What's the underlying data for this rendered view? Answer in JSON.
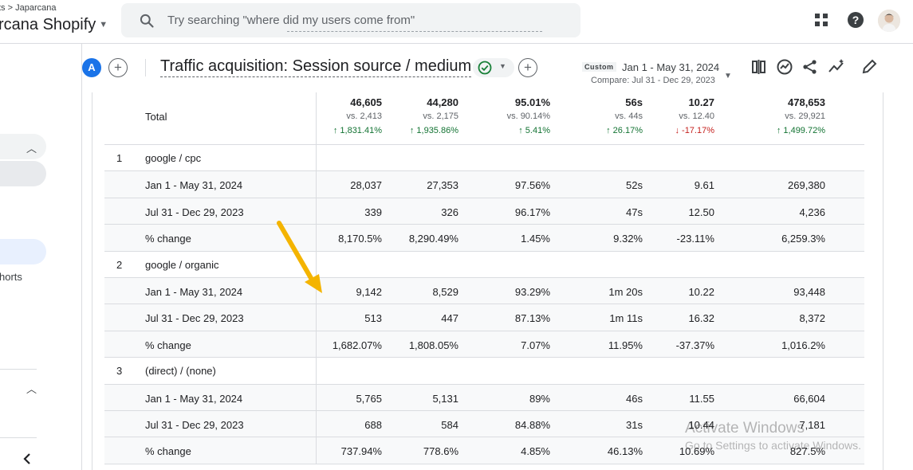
{
  "breadcrumb": "ts > Japarcana",
  "property": "rcana Shopify",
  "search_placeholder": "Try searching \"where did my users come from\"",
  "sidebar": {
    "partial_text": "horts"
  },
  "report": {
    "avatar_letter": "A",
    "title": "Traffic acquisition: Session source / medium",
    "custom_chip": "Custom",
    "date_range": "Jan 1 - May 31, 2024",
    "compare_range": "Compare: Jul 31 - Dec 29, 2023"
  },
  "totals": {
    "label": "Total",
    "cols": [
      {
        "value": "46,605",
        "vs": "vs. 2,413",
        "change": "↑ 1,831.41%",
        "dir": "up"
      },
      {
        "value": "44,280",
        "vs": "vs. 2,175",
        "change": "↑ 1,935.86%",
        "dir": "up"
      },
      {
        "value": "95.01%",
        "vs": "vs. 90.14%",
        "change": "↑ 5.41%",
        "dir": "up"
      },
      {
        "value": "56s",
        "vs": "vs. 44s",
        "change": "↑ 26.17%",
        "dir": "up"
      },
      {
        "value": "10.27",
        "vs": "vs. 12.40",
        "change": "↓ -17.17%",
        "dir": "down"
      },
      {
        "value": "478,653",
        "vs": "vs. 29,921",
        "change": "↑ 1,499.72%",
        "dir": "up"
      }
    ]
  },
  "groups": [
    {
      "index": "1",
      "name": "google / cpc",
      "rows": [
        {
          "label": "Jan 1 - May 31, 2024",
          "values": [
            "28,037",
            "27,353",
            "97.56%",
            "52s",
            "9.61",
            "269,380"
          ]
        },
        {
          "label": "Jul 31 - Dec 29, 2023",
          "values": [
            "339",
            "326",
            "96.17%",
            "47s",
            "12.50",
            "4,236"
          ]
        },
        {
          "label": "% change",
          "values": [
            "8,170.5%",
            "8,290.49%",
            "1.45%",
            "9.32%",
            "-23.11%",
            "6,259.3%"
          ]
        }
      ]
    },
    {
      "index": "2",
      "name": "google / organic",
      "rows": [
        {
          "label": "Jan 1 - May 31, 2024",
          "values": [
            "9,142",
            "8,529",
            "93.29%",
            "1m 20s",
            "10.22",
            "93,448"
          ]
        },
        {
          "label": "Jul 31 - Dec 29, 2023",
          "values": [
            "513",
            "447",
            "87.13%",
            "1m 11s",
            "16.32",
            "8,372"
          ]
        },
        {
          "label": "% change",
          "values": [
            "1,682.07%",
            "1,808.05%",
            "7.07%",
            "11.95%",
            "-37.37%",
            "1,016.2%"
          ]
        }
      ]
    },
    {
      "index": "3",
      "name": "(direct) / (none)",
      "rows": [
        {
          "label": "Jan 1 - May 31, 2024",
          "values": [
            "5,765",
            "5,131",
            "89%",
            "46s",
            "11.55",
            "66,604"
          ]
        },
        {
          "label": "Jul 31 - Dec 29, 2023",
          "values": [
            "688",
            "584",
            "84.88%",
            "31s",
            "10.44",
            "7,181"
          ]
        },
        {
          "label": "% change",
          "values": [
            "737.94%",
            "778.6%",
            "4.85%",
            "46.13%",
            "10.69%",
            "827.5%"
          ]
        }
      ]
    }
  ],
  "watermark": {
    "line1": "Activate Windows",
    "line2": "Go to Settings to activate Windows."
  },
  "colors": {
    "accent": "#1a73e8",
    "up": "#137333",
    "down": "#c5221f",
    "arrow": "#f4b400",
    "check": "#188038"
  }
}
